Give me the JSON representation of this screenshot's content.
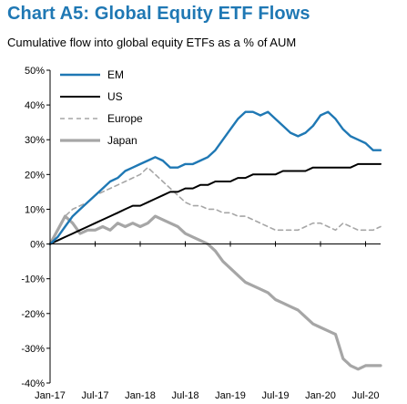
{
  "chart_data": {
    "type": "line",
    "title": "Chart A5: Global Equity ETF Flows",
    "subtitle": "Cumulative flow into global equity ETFs as a % of AUM",
    "xlabel": "",
    "ylabel": "",
    "x_range": [
      "2017-01",
      "2020-09"
    ],
    "ylim": [
      -40,
      50
    ],
    "y_ticks": [
      50,
      40,
      30,
      20,
      10,
      0,
      -10,
      -20,
      -30,
      -40
    ],
    "y_tick_labels": [
      "50%",
      "40%",
      "30%",
      "20%",
      "10%",
      "0%",
      "-10%",
      "-20%",
      "-30%",
      "-40%"
    ],
    "x_ticks": [
      "2017-01",
      "2017-07",
      "2018-01",
      "2018-07",
      "2019-01",
      "2019-07",
      "2020-01",
      "2020-07"
    ],
    "x_tick_labels": [
      "Jan-17",
      "Jul-17",
      "Jan-18",
      "Jul-18",
      "Jan-19",
      "Jul-19",
      "Jan-20",
      "Jul-20"
    ],
    "grid": false,
    "legend_position": "top-left",
    "colors": {
      "title": "#1f78b4",
      "EM": "#1f78b4",
      "US": "#000000",
      "Europe": "#a6a6a6",
      "Japan": "#a6a6a6"
    },
    "series": [
      {
        "name": "EM",
        "style": "solid",
        "x": [
          "2017-01",
          "2017-02",
          "2017-03",
          "2017-04",
          "2017-05",
          "2017-06",
          "2017-07",
          "2017-08",
          "2017-09",
          "2017-10",
          "2017-11",
          "2017-12",
          "2018-01",
          "2018-02",
          "2018-03",
          "2018-04",
          "2018-05",
          "2018-06",
          "2018-07",
          "2018-08",
          "2018-09",
          "2018-10",
          "2018-11",
          "2018-12",
          "2019-01",
          "2019-02",
          "2019-03",
          "2019-04",
          "2019-05",
          "2019-06",
          "2019-07",
          "2019-08",
          "2019-09",
          "2019-10",
          "2019-11",
          "2019-12",
          "2020-01",
          "2020-02",
          "2020-03",
          "2020-04",
          "2020-05",
          "2020-06",
          "2020-07",
          "2020-08",
          "2020-09"
        ],
        "values": [
          0,
          2,
          5,
          8,
          10,
          12,
          14,
          16,
          18,
          19,
          21,
          22,
          23,
          24,
          25,
          24,
          22,
          22,
          23,
          23,
          24,
          25,
          27,
          30,
          33,
          36,
          38,
          38,
          37,
          38,
          36,
          34,
          32,
          31,
          32,
          34,
          37,
          38,
          36,
          33,
          31,
          30,
          29,
          27,
          27
        ]
      },
      {
        "name": "US",
        "style": "solid",
        "x": [
          "2017-01",
          "2017-02",
          "2017-03",
          "2017-04",
          "2017-05",
          "2017-06",
          "2017-07",
          "2017-08",
          "2017-09",
          "2017-10",
          "2017-11",
          "2017-12",
          "2018-01",
          "2018-02",
          "2018-03",
          "2018-04",
          "2018-05",
          "2018-06",
          "2018-07",
          "2018-08",
          "2018-09",
          "2018-10",
          "2018-11",
          "2018-12",
          "2019-01",
          "2019-02",
          "2019-03",
          "2019-04",
          "2019-05",
          "2019-06",
          "2019-07",
          "2019-08",
          "2019-09",
          "2019-10",
          "2019-11",
          "2019-12",
          "2020-01",
          "2020-02",
          "2020-03",
          "2020-04",
          "2020-05",
          "2020-06",
          "2020-07",
          "2020-08",
          "2020-09"
        ],
        "values": [
          0,
          1,
          2,
          3,
          4,
          5,
          6,
          7,
          8,
          9,
          10,
          11,
          11,
          12,
          13,
          14,
          15,
          15,
          16,
          16,
          17,
          17,
          18,
          18,
          18,
          19,
          19,
          20,
          20,
          20,
          20,
          21,
          21,
          21,
          21,
          22,
          22,
          22,
          22,
          22,
          22,
          23,
          23,
          23,
          23
        ]
      },
      {
        "name": "Europe",
        "style": "dashed",
        "x": [
          "2017-01",
          "2017-02",
          "2017-03",
          "2017-04",
          "2017-05",
          "2017-06",
          "2017-07",
          "2017-08",
          "2017-09",
          "2017-10",
          "2017-11",
          "2017-12",
          "2018-01",
          "2018-02",
          "2018-03",
          "2018-04",
          "2018-05",
          "2018-06",
          "2018-07",
          "2018-08",
          "2018-09",
          "2018-10",
          "2018-11",
          "2018-12",
          "2019-01",
          "2019-02",
          "2019-03",
          "2019-04",
          "2019-05",
          "2019-06",
          "2019-07",
          "2019-08",
          "2019-09",
          "2019-10",
          "2019-11",
          "2019-12",
          "2020-01",
          "2020-02",
          "2020-03",
          "2020-04",
          "2020-05",
          "2020-06",
          "2020-07",
          "2020-08",
          "2020-09"
        ],
        "values": [
          0,
          4,
          8,
          10,
          11,
          12,
          14,
          15,
          16,
          17,
          18,
          19,
          20,
          22,
          20,
          18,
          16,
          14,
          12,
          11,
          11,
          10,
          10,
          9,
          9,
          8,
          8,
          7,
          6,
          5,
          4,
          4,
          4,
          4,
          5,
          6,
          6,
          5,
          4,
          6,
          5,
          4,
          4,
          4,
          5
        ]
      },
      {
        "name": "Japan",
        "style": "solid",
        "x": [
          "2017-01",
          "2017-02",
          "2017-03",
          "2017-04",
          "2017-05",
          "2017-06",
          "2017-07",
          "2017-08",
          "2017-09",
          "2017-10",
          "2017-11",
          "2017-12",
          "2018-01",
          "2018-02",
          "2018-03",
          "2018-04",
          "2018-05",
          "2018-06",
          "2018-07",
          "2018-08",
          "2018-09",
          "2018-10",
          "2018-11",
          "2018-12",
          "2019-01",
          "2019-02",
          "2019-03",
          "2019-04",
          "2019-05",
          "2019-06",
          "2019-07",
          "2019-08",
          "2019-09",
          "2019-10",
          "2019-11",
          "2019-12",
          "2020-01",
          "2020-02",
          "2020-03",
          "2020-04",
          "2020-05",
          "2020-06",
          "2020-07",
          "2020-08",
          "2020-09"
        ],
        "values": [
          0,
          4,
          8,
          6,
          3,
          4,
          4,
          5,
          4,
          6,
          5,
          6,
          5,
          6,
          8,
          7,
          6,
          5,
          3,
          2,
          1,
          0,
          -2,
          -5,
          -7,
          -9,
          -11,
          -12,
          -13,
          -14,
          -16,
          -17,
          -18,
          -19,
          -21,
          -23,
          -24,
          -25,
          -26,
          -33,
          -35,
          -36,
          -35,
          -35,
          -35
        ]
      }
    ]
  }
}
